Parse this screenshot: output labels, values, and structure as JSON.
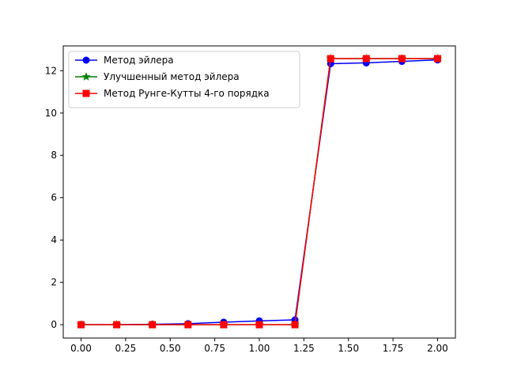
{
  "chart_data": {
    "type": "line",
    "title": "",
    "xlabel": "",
    "ylabel": "",
    "xlim": [
      -0.1,
      2.1
    ],
    "ylim": [
      -0.63,
      13.17
    ],
    "x_ticks": [
      "0.00",
      "0.25",
      "0.50",
      "0.75",
      "1.00",
      "1.25",
      "1.50",
      "1.75",
      "2.00"
    ],
    "y_ticks": [
      "0",
      "2",
      "4",
      "6",
      "8",
      "10",
      "12"
    ],
    "grid": false,
    "legend_position": "top-left",
    "x": [
      0.0,
      0.2,
      0.4,
      0.6,
      0.8,
      1.0,
      1.2,
      1.4,
      1.6,
      1.8,
      2.0
    ],
    "series": [
      {
        "name": "Метод эйлера",
        "color": "#0000ff",
        "marker": "circle",
        "values": [
          0.0,
          0.0,
          0.02,
          0.05,
          0.12,
          0.18,
          0.23,
          12.33,
          12.37,
          12.44,
          12.51
        ]
      },
      {
        "name": "Улучшенный метод эйлера",
        "color": "#008000",
        "marker": "star",
        "values": [
          0.0,
          0.0,
          0.0,
          0.0,
          0.0,
          0.0,
          0.0,
          12.57,
          12.57,
          12.57,
          12.57
        ]
      },
      {
        "name": "Метод Рунге-Кутты 4-го порядка",
        "color": "#ff0000",
        "marker": "square",
        "values": [
          0.0,
          0.0,
          0.0,
          0.0,
          0.0,
          0.0,
          0.0,
          12.57,
          12.57,
          12.57,
          12.57
        ]
      }
    ]
  }
}
